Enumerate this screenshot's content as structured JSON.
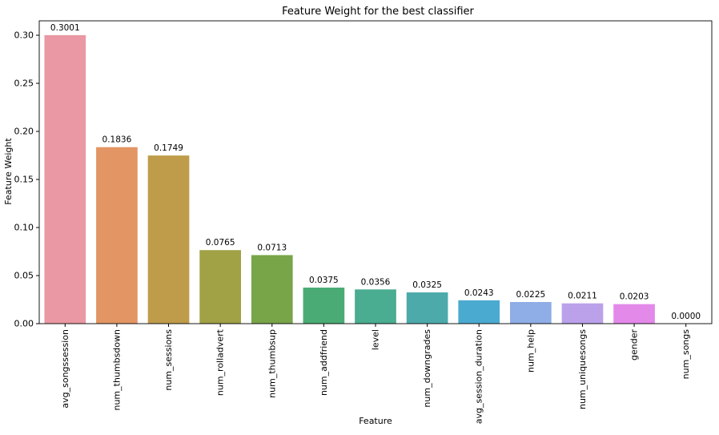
{
  "chart_data": {
    "type": "bar",
    "title": "Feature Weight for the best classifier",
    "xlabel": "Feature",
    "ylabel": "Feature Weight",
    "ylim": [
      0,
      0.315
    ],
    "yticks": [
      "0.00",
      "0.05",
      "0.10",
      "0.15",
      "0.20",
      "0.25",
      "0.30"
    ],
    "yticks_values": [
      0,
      0.05,
      0.1,
      0.15,
      0.2,
      0.25,
      0.3
    ],
    "grid": false,
    "categories": [
      "avg_songssession",
      "num_thumbsdown",
      "num_sessions",
      "num_rolladvert",
      "num_thumbsup",
      "num_addfriend",
      "level",
      "num_downgrades",
      "avg_session_duration",
      "num_help",
      "num_uniquesongs",
      "gender",
      "num_songs"
    ],
    "values": [
      0.3001,
      0.1836,
      0.1749,
      0.0765,
      0.0713,
      0.0375,
      0.0356,
      0.0325,
      0.0243,
      0.0225,
      0.0211,
      0.0203,
      0.0
    ],
    "value_labels": [
      "0.3001",
      "0.1836",
      "0.1749",
      "0.0765",
      "0.0713",
      "0.0375",
      "0.0356",
      "0.0325",
      "0.0243",
      "0.0225",
      "0.0211",
      "0.0203",
      "0.0000"
    ],
    "colors": [
      "#ea98a3",
      "#e39564",
      "#bf9c4a",
      "#a1a146",
      "#78a548",
      "#4aac74",
      "#4aac90",
      "#4daaab",
      "#4baad0",
      "#8fade6",
      "#bba1ea",
      "#e389ea",
      "#e888d0"
    ]
  }
}
